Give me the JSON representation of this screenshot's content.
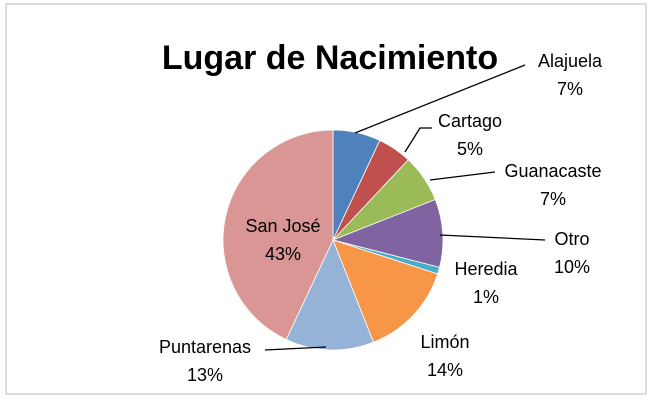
{
  "chart_data": {
    "type": "pie",
    "title": "Lugar de Nacimiento",
    "categories": [
      "Alajuela",
      "Cartago",
      "Guanacaste",
      "Otro",
      "Heredia",
      "Limón",
      "Puntarenas",
      "San José"
    ],
    "values": [
      7,
      5,
      7,
      10,
      1,
      14,
      13,
      43
    ],
    "value_labels": [
      "7%",
      "5%",
      "7%",
      "10%",
      "1%",
      "14%",
      "13%",
      "43%"
    ],
    "colors": [
      "#4f81bd",
      "#c0504d",
      "#9bbb59",
      "#8064a2",
      "#4bacc6",
      "#f79646",
      "#95b3d7",
      "#d99694"
    ]
  }
}
